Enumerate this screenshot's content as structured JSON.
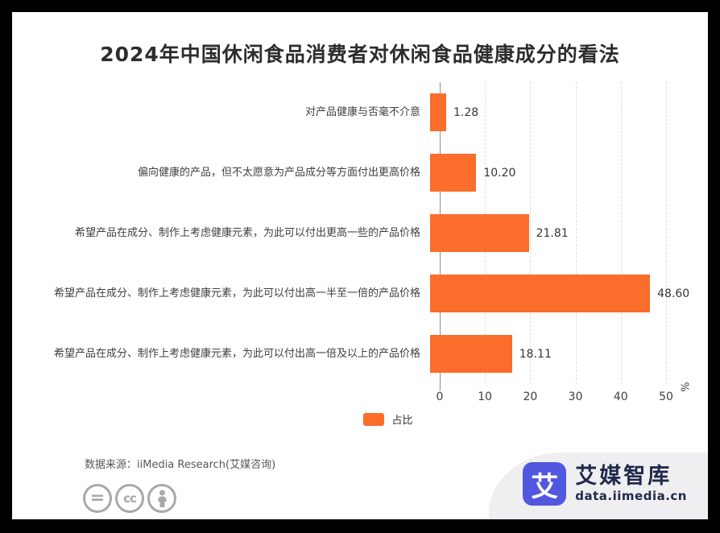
{
  "title": "2024年中国休闲食品消费者对休闲食品健康成分的看法",
  "chart_data": {
    "type": "bar",
    "orientation": "horizontal",
    "title": "2024年中国休闲食品消费者对休闲食品健康成分的看法",
    "categories": [
      "对产品健康与否毫不介意",
      "偏向健康的产品，但不太愿意为产品成分等方面付出更高价格",
      "希望产品在成分、制作上考虑健康元素，为此可以付出更高一些的产品价格",
      "希望产品在成分、制作上考虑健康元素，为此可以付出高一半至一倍的产品价格",
      "希望产品在成分、制作上考虑健康元素，为此可以付出高一倍及以上的产品价格"
    ],
    "values": [
      1.28,
      10.2,
      21.81,
      48.6,
      18.11
    ],
    "value_labels": [
      "1.28",
      "10.20",
      "21.81",
      "48.60",
      "18.11"
    ],
    "series": [
      {
        "name": "占比",
        "values": [
          1.28,
          10.2,
          21.81,
          48.6,
          18.11
        ]
      }
    ],
    "xlabel": "%",
    "xlim": [
      0,
      50
    ],
    "xticks": [
      0,
      10,
      20,
      30,
      40,
      50
    ],
    "xtick_labels": [
      "0",
      "10",
      "20",
      "30",
      "40",
      "50"
    ],
    "grid": "vertical-dashed",
    "legend_position": "bottom-center",
    "bar_color": "#FB6D2A"
  },
  "legend": {
    "label": "占比"
  },
  "footer": {
    "source": "数据来源：iiMedia Research(艾媒咨询)",
    "license_icons": [
      "equals-icon",
      "cc-icon",
      "person-icon"
    ]
  },
  "brand": {
    "logo_char": "艾",
    "name": "艾媒智库",
    "domain": "data.iimedia.cn"
  },
  "colors": {
    "bar": "#FB6D2A",
    "logo_blue": "#5157DE",
    "brand_text": "#20294C",
    "swoosh_gray": "#EFEFF1"
  }
}
